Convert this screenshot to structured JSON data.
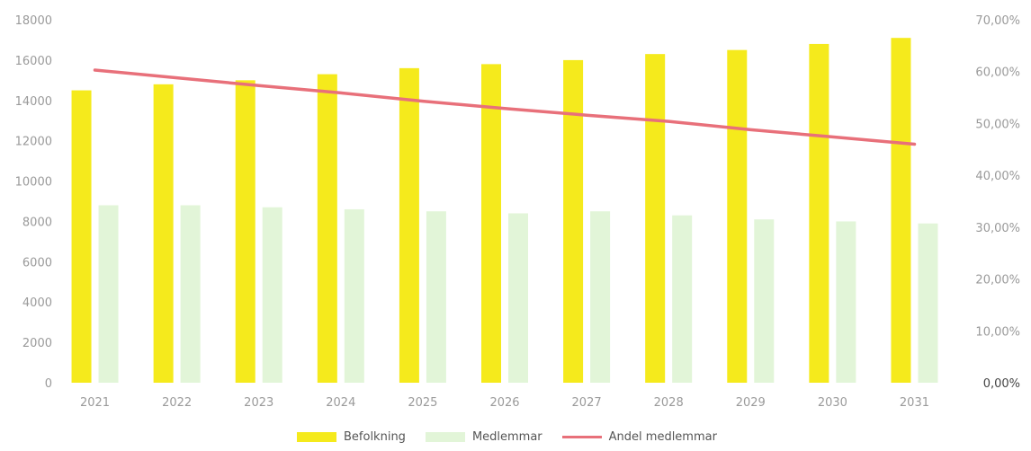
{
  "chart_data": {
    "type": "bar",
    "categories": [
      "2021",
      "2022",
      "2023",
      "2024",
      "2025",
      "2026",
      "2027",
      "2028",
      "2029",
      "2030",
      "2031"
    ],
    "series": [
      {
        "name": "Befolkning",
        "type": "bar",
        "axis": "left",
        "color": "#f5ea1c",
        "values": [
          14500,
          14800,
          15000,
          15300,
          15600,
          15800,
          16000,
          16300,
          16500,
          16800,
          17100
        ]
      },
      {
        "name": "Medlemmar",
        "type": "bar",
        "axis": "left",
        "color": "#e2f5d8",
        "values": [
          8800,
          8800,
          8700,
          8600,
          8500,
          8400,
          8500,
          8300,
          8100,
          8000,
          7900
        ]
      },
      {
        "name": "Andel medlemmar",
        "type": "line",
        "axis": "right",
        "color": "#e8707a",
        "values": [
          0.603,
          0.588,
          0.573,
          0.559,
          0.543,
          0.529,
          0.516,
          0.504,
          0.488,
          0.474,
          0.46
        ]
      }
    ],
    "y_left": {
      "ylim": [
        0,
        18000
      ],
      "ticks": [
        "0",
        "2000",
        "4000",
        "6000",
        "8000",
        "10000",
        "12000",
        "14000",
        "16000",
        "18000"
      ]
    },
    "y_right": {
      "ylim": [
        0,
        0.7
      ],
      "ticks": [
        "0,00%",
        "10,00%",
        "20,00%",
        "30,00%",
        "40,00%",
        "50,00%",
        "60,00%",
        "70,00%"
      ]
    },
    "title": "",
    "xlabel": "",
    "ylabel": "",
    "grid": false,
    "legend_position": "bottom"
  }
}
